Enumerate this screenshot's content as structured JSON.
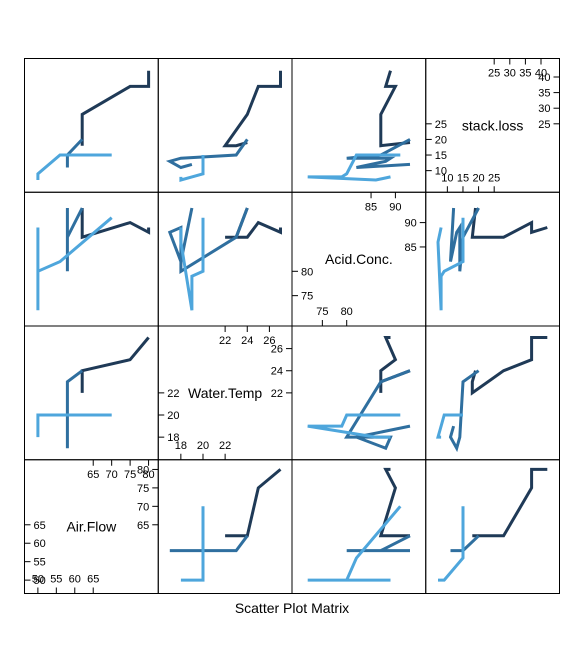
{
  "chart_data": {
    "type": "scatter-matrix",
    "xlabel": "Scatter Plot Matrix",
    "variables": [
      {
        "name": "Air.Flow",
        "limits": [
          48,
          81
        ],
        "low_ticks": [
          50,
          55,
          60,
          65
        ],
        "high_ticks": [
          65,
          70,
          75,
          80
        ]
      },
      {
        "name": "Water.Temp",
        "limits": [
          16.5,
          27.5
        ],
        "low_ticks": [
          18,
          20,
          22
        ],
        "high_ticks": [
          22,
          24,
          26
        ]
      },
      {
        "name": "Acid.Conc.",
        "limits": [
          70,
          95
        ],
        "low_ticks": [
          75,
          80
        ],
        "high_ticks": [
          85,
          90
        ]
      },
      {
        "name": "stack.loss",
        "limits": [
          5,
          44
        ],
        "low_ticks": [
          10,
          15,
          20,
          25
        ],
        "high_ticks": [
          25,
          30,
          35,
          40
        ]
      }
    ],
    "groups": [
      {
        "color": "#1f3a57",
        "points": [
          {
            "Air.Flow": 80,
            "Water.Temp": 27,
            "Acid.Conc.": 89,
            "stack.loss": 42
          },
          {
            "Air.Flow": 80,
            "Water.Temp": 27,
            "Acid.Conc.": 88,
            "stack.loss": 37
          },
          {
            "Air.Flow": 75,
            "Water.Temp": 25,
            "Acid.Conc.": 90,
            "stack.loss": 37
          },
          {
            "Air.Flow": 62,
            "Water.Temp": 24,
            "Acid.Conc.": 87,
            "stack.loss": 28
          },
          {
            "Air.Flow": 62,
            "Water.Temp": 22,
            "Acid.Conc.": 87,
            "stack.loss": 18
          },
          {
            "Air.Flow": 62,
            "Water.Temp": 23,
            "Acid.Conc.": 87,
            "stack.loss": 18
          },
          {
            "Air.Flow": 62,
            "Water.Temp": 24,
            "Acid.Conc.": 93,
            "stack.loss": 19
          }
        ]
      },
      {
        "color": "#2f6f9f",
        "points": [
          {
            "Air.Flow": 62,
            "Water.Temp": 24,
            "Acid.Conc.": 93,
            "stack.loss": 20
          },
          {
            "Air.Flow": 58,
            "Water.Temp": 23,
            "Acid.Conc.": 87,
            "stack.loss": 15
          },
          {
            "Air.Flow": 58,
            "Water.Temp": 18,
            "Acid.Conc.": 80,
            "stack.loss": 14
          },
          {
            "Air.Flow": 58,
            "Water.Temp": 18,
            "Acid.Conc.": 89,
            "stack.loss": 14
          },
          {
            "Air.Flow": 58,
            "Water.Temp": 17,
            "Acid.Conc.": 88,
            "stack.loss": 13
          },
          {
            "Air.Flow": 58,
            "Water.Temp": 18,
            "Acid.Conc.": 82,
            "stack.loss": 11
          },
          {
            "Air.Flow": 58,
            "Water.Temp": 19,
            "Acid.Conc.": 93,
            "stack.loss": 12
          }
        ]
      },
      {
        "color": "#4ea6dc",
        "points": [
          {
            "Air.Flow": 50,
            "Water.Temp": 18,
            "Acid.Conc.": 89,
            "stack.loss": 8
          },
          {
            "Air.Flow": 50,
            "Water.Temp": 18,
            "Acid.Conc.": 86,
            "stack.loss": 7
          },
          {
            "Air.Flow": 50,
            "Water.Temp": 19,
            "Acid.Conc.": 72,
            "stack.loss": 8
          },
          {
            "Air.Flow": 50,
            "Water.Temp": 19,
            "Acid.Conc.": 79,
            "stack.loss": 8
          },
          {
            "Air.Flow": 50,
            "Water.Temp": 20,
            "Acid.Conc.": 80,
            "stack.loss": 9
          },
          {
            "Air.Flow": 56,
            "Water.Temp": 20,
            "Acid.Conc.": 82,
            "stack.loss": 15
          },
          {
            "Air.Flow": 70,
            "Water.Temp": 20,
            "Acid.Conc.": 91,
            "stack.loss": 15
          }
        ]
      }
    ]
  }
}
